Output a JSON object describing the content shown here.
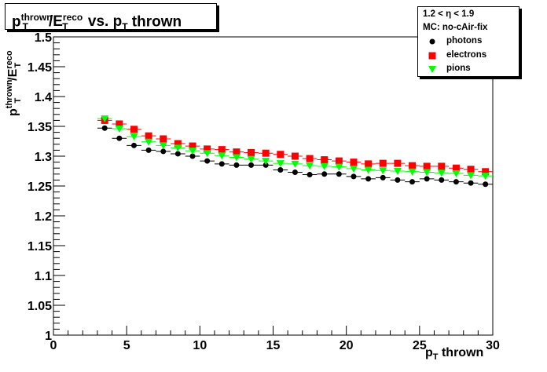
{
  "title": {
    "p": "p",
    "sup1": "thrown",
    "mid": "/E",
    "sup2": "reco",
    "sub2": "T",
    "sub1": "T",
    "rest": " vs. p",
    "sub3": "T",
    "end": " thrown"
  },
  "legend": {
    "header1": "1.2 < η < 1.9",
    "header2": "MC: no-cAir-fix",
    "entries": [
      {
        "label": "photons",
        "marker": "circle",
        "color": "#000000"
      },
      {
        "label": "electrons",
        "marker": "square",
        "color": "#ff0000"
      },
      {
        "label": "pions",
        "marker": "triangle-down",
        "color": "#00ff00"
      }
    ]
  },
  "axes": {
    "x_title_p": "p",
    "x_title_sub": "T",
    "x_title_rest": " thrown",
    "y_title_p": "p",
    "y_title_sup": "thrown",
    "y_title_mid": "/E",
    "y_title_sup2": "reco",
    "y_title_sub": "T",
    "y_title_sub1": "T"
  },
  "chart_data": {
    "type": "scatter",
    "xlim": [
      0,
      30
    ],
    "ylim": [
      1,
      1.5
    ],
    "xticks": [
      0,
      5,
      10,
      15,
      20,
      25,
      30
    ],
    "yticks": [
      1,
      1.05,
      1.1,
      1.15,
      1.2,
      1.25,
      1.3,
      1.35,
      1.4,
      1.45,
      1.5
    ],
    "xtick_labels": [
      "0",
      "5",
      "10",
      "15",
      "20",
      "25",
      "30"
    ],
    "ytick_labels": [
      "1",
      "1.05",
      "1.1",
      "1.15",
      "1.2",
      "1.25",
      "1.3",
      "1.35",
      "1.4",
      "1.45",
      "1.5"
    ],
    "x_error": 0.5,
    "grid": false,
    "legend_position": "top-right",
    "series": [
      {
        "name": "photons",
        "color": "#000000",
        "marker": "circle",
        "x": [
          3.5,
          4.5,
          5.5,
          6.5,
          7.5,
          8.5,
          9.5,
          10.5,
          11.5,
          12.5,
          13.5,
          14.5,
          15.5,
          16.5,
          17.5,
          18.5,
          19.5,
          20.5,
          21.5,
          22.5,
          23.5,
          24.5,
          25.5,
          26.5,
          27.5,
          28.5,
          29.5
        ],
        "y": [
          1.347,
          1.33,
          1.318,
          1.31,
          1.308,
          1.304,
          1.3,
          1.292,
          1.287,
          1.285,
          1.285,
          1.285,
          1.277,
          1.273,
          1.269,
          1.27,
          1.27,
          1.266,
          1.262,
          1.264,
          1.26,
          1.257,
          1.262,
          1.26,
          1.257,
          1.255,
          1.253
        ]
      },
      {
        "name": "electrons",
        "color": "#ff0000",
        "marker": "square",
        "x": [
          3.5,
          4.5,
          5.5,
          6.5,
          7.5,
          8.5,
          9.5,
          10.5,
          11.5,
          12.5,
          13.5,
          14.5,
          15.5,
          16.5,
          17.5,
          18.5,
          19.5,
          20.5,
          21.5,
          22.5,
          23.5,
          24.5,
          25.5,
          26.5,
          27.5,
          28.5,
          29.5
        ],
        "y": [
          1.36,
          1.354,
          1.345,
          1.334,
          1.329,
          1.321,
          1.317,
          1.312,
          1.311,
          1.307,
          1.306,
          1.305,
          1.303,
          1.3,
          1.296,
          1.294,
          1.292,
          1.29,
          1.287,
          1.288,
          1.288,
          1.284,
          1.283,
          1.283,
          1.28,
          1.278,
          1.274
        ]
      },
      {
        "name": "pions",
        "color": "#00ff00",
        "marker": "triangle-down",
        "x": [
          3.5,
          4.5,
          5.5,
          6.5,
          7.5,
          8.5,
          9.5,
          10.5,
          11.5,
          12.5,
          13.5,
          14.5,
          15.5,
          16.5,
          17.5,
          18.5,
          19.5,
          20.5,
          21.5,
          22.5,
          23.5,
          24.5,
          25.5,
          26.5,
          27.5,
          28.5,
          29.5
        ],
        "y": [
          1.363,
          1.346,
          1.333,
          1.324,
          1.318,
          1.314,
          1.309,
          1.305,
          1.301,
          1.298,
          1.295,
          1.292,
          1.288,
          1.287,
          1.284,
          1.283,
          1.282,
          1.279,
          1.277,
          1.276,
          1.275,
          1.274,
          1.273,
          1.272,
          1.271,
          1.268,
          1.267
        ]
      }
    ]
  }
}
